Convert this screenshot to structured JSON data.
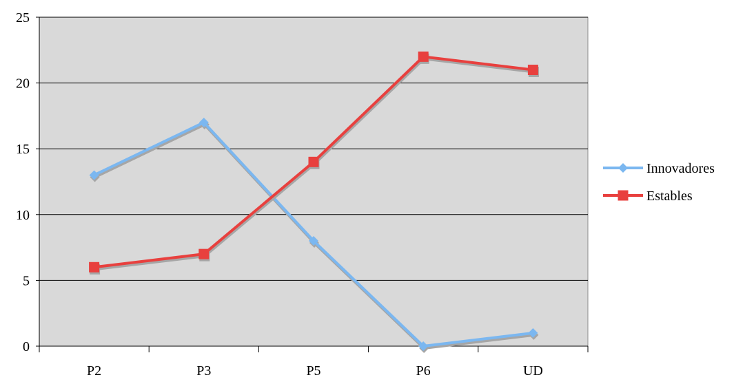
{
  "chart_data": {
    "type": "line",
    "title": "",
    "xlabel": "",
    "ylabel": "",
    "categories": [
      "P2",
      "P3",
      "P5",
      "P6",
      "UD"
    ],
    "ylim": [
      0,
      25
    ],
    "yticks": [
      0,
      5,
      10,
      15,
      20,
      25
    ],
    "grid": true,
    "legend_position": "right",
    "plot_background": "#d9d9d9",
    "series": [
      {
        "name": "Innovadores",
        "values": [
          13,
          17,
          8,
          0,
          1
        ],
        "color": "#7bb7f0",
        "marker": "diamond"
      },
      {
        "name": "Estables",
        "values": [
          6,
          7,
          14,
          22,
          21
        ],
        "color": "#e8403e",
        "marker": "square"
      }
    ]
  }
}
